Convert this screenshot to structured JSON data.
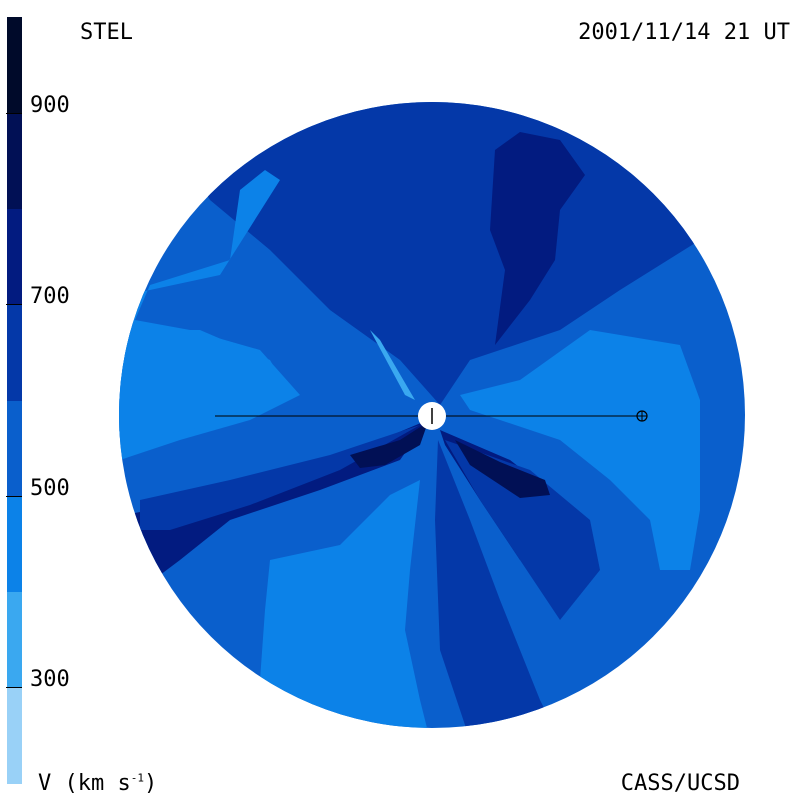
{
  "header": {
    "source": "STEL",
    "timestamp": "2001/11/14 21 UT"
  },
  "footer": {
    "credit": "CASS/UCSD"
  },
  "colorbar": {
    "label_prefix": "V (km s",
    "label_exp": "-1",
    "label_suffix": ")",
    "ticks": [
      {
        "value": 900,
        "label": "900"
      },
      {
        "value": 700,
        "label": "700"
      },
      {
        "value": 500,
        "label": "500"
      },
      {
        "value": 300,
        "label": "300"
      }
    ],
    "levels": [
      {
        "min": 200,
        "max": 300,
        "color": "#99d1f7"
      },
      {
        "min": 300,
        "max": 400,
        "color": "#3aa8f0"
      },
      {
        "min": 400,
        "max": 500,
        "color": "#0c82e8"
      },
      {
        "min": 500,
        "max": 600,
        "color": "#0a5fcc"
      },
      {
        "min": 600,
        "max": 700,
        "color": "#0438a8"
      },
      {
        "min": 700,
        "max": 800,
        "color": "#021b80"
      },
      {
        "min": 800,
        "max": 900,
        "color": "#011055"
      },
      {
        "min": 900,
        "max": 1000,
        "color": "#000a2a"
      }
    ],
    "range": [
      200,
      1000
    ]
  },
  "map": {
    "marker_sun": "sun-symbol",
    "marker_earth": "earth-symbol"
  }
}
